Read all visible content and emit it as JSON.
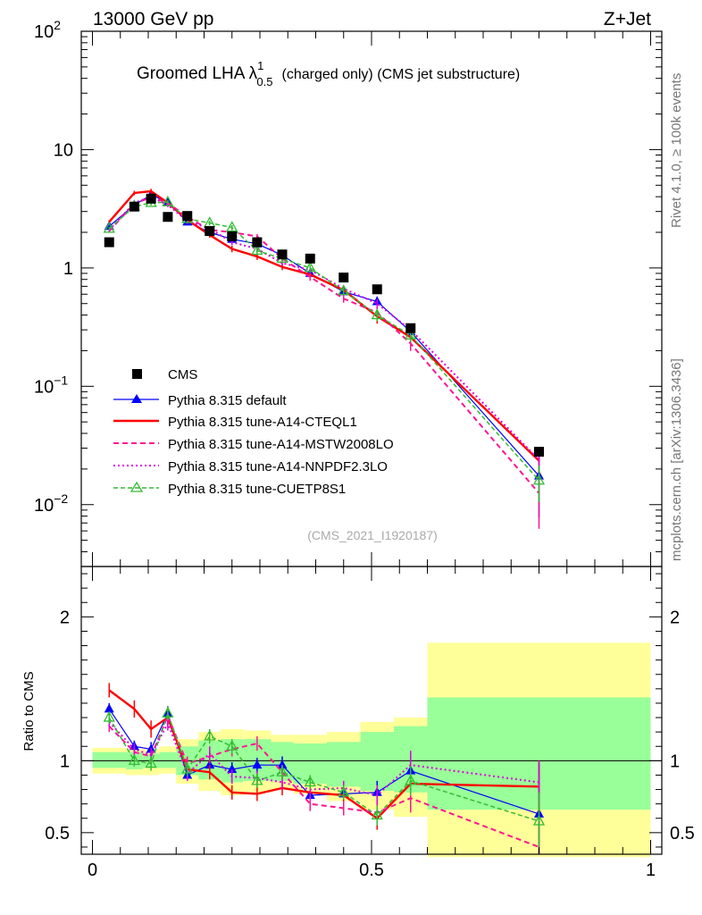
{
  "header": {
    "beam": "13000 GeV pp",
    "process": "Z+Jet"
  },
  "side": {
    "rivet": "Rivet 4.1.0, ≥ 100k events",
    "mcplots": "mcplots.cern.ch [arXiv:1306.3436]"
  },
  "chart_data": {
    "type": "line",
    "title": "Groomed LHA λ^1_0.5 (charged only) (CMS jet substructure)",
    "title_main": "Groomed LHA λ",
    "title_sup": "1",
    "title_sub": "0.5",
    "title_rest": "(charged only) (CMS jet substructure)",
    "analysis_tag": "(CMS_2021_I1920187)",
    "x": [
      0.03,
      0.075,
      0.105,
      0.135,
      0.17,
      0.21,
      0.25,
      0.295,
      0.34,
      0.39,
      0.45,
      0.51,
      0.57,
      0.8
    ],
    "xlim": [
      -0.02,
      1.02
    ],
    "ylim_main": [
      0.003,
      100
    ],
    "yscale_main": "log",
    "main_ticks": [
      {
        "value": 100,
        "base": "10",
        "exp": "2"
      },
      {
        "value": 10,
        "base": "10",
        "exp": ""
      },
      {
        "value": 1,
        "base": "1",
        "exp": ""
      },
      {
        "value": 0.1,
        "base": "10",
        "exp": "−1"
      },
      {
        "value": 0.01,
        "base": "10",
        "exp": "−2"
      }
    ],
    "ratio_ylabel": "Ratio to CMS",
    "ylim_ratio": [
      0.35,
      2.35
    ],
    "ratio_ticks": [
      {
        "value": 2,
        "label": "2"
      },
      {
        "value": 1,
        "label": "1"
      },
      {
        "value": 0.5,
        "label": "0.5"
      }
    ],
    "x_ticks": [
      {
        "value": 0,
        "label": "0"
      },
      {
        "value": 0.5,
        "label": "0.5"
      },
      {
        "value": 1,
        "label": "1"
      }
    ],
    "data": {
      "name": "CMS",
      "values": [
        1.65,
        3.3,
        3.85,
        2.7,
        2.75,
        2.05,
        1.85,
        1.65,
        1.3,
        1.2,
        0.83,
        0.66,
        0.31,
        0.028
      ]
    },
    "bands": {
      "edges": [
        0.0,
        0.06,
        0.09,
        0.12,
        0.15,
        0.19,
        0.23,
        0.27,
        0.32,
        0.36,
        0.42,
        0.48,
        0.54,
        0.6,
        1.0
      ],
      "inner_lo": [
        0.95,
        0.94,
        0.95,
        0.95,
        0.9,
        0.87,
        0.85,
        0.86,
        0.86,
        0.84,
        0.82,
        0.79,
        0.78,
        0.66
      ],
      "inner_hi": [
        1.06,
        1.06,
        1.05,
        1.06,
        1.1,
        1.14,
        1.15,
        1.15,
        1.13,
        1.12,
        1.13,
        1.2,
        1.24,
        1.44
      ],
      "outer_lo": [
        0.91,
        0.9,
        0.9,
        0.91,
        0.84,
        0.79,
        0.76,
        0.78,
        0.8,
        0.77,
        0.72,
        0.66,
        0.61,
        0.33
      ],
      "outer_hi": [
        1.09,
        1.08,
        1.08,
        1.1,
        1.15,
        1.2,
        1.22,
        1.21,
        1.18,
        1.18,
        1.2,
        1.27,
        1.3,
        1.82
      ]
    },
    "series": [
      {
        "name": "Pythia 8.315 default",
        "color": "#0000ff",
        "dash": "",
        "width": 1.2,
        "marker": "triangle-filled",
        "values": [
          2.25,
          3.4,
          4.15,
          3.6,
          2.45,
          2.0,
          1.75,
          1.6,
          1.28,
          0.9,
          0.63,
          0.52,
          0.29,
          0.0175
        ],
        "ratio": [
          1.36,
          1.1,
          1.08,
          1.33,
          0.9,
          0.97,
          0.94,
          0.97,
          0.97,
          0.76,
          0.77,
          0.78,
          0.93,
          0.63
        ],
        "ratio_err": [
          0.04,
          0.04,
          0.05,
          0.05,
          0.04,
          0.05,
          0.05,
          0.05,
          0.06,
          0.05,
          0.05,
          0.08,
          0.12,
          0.35
        ]
      },
      {
        "name": "Pythia 8.315 tune-A14-CTEQL1",
        "color": "#ff0000",
        "dash": "",
        "width": 2.4,
        "marker": "none",
        "values": [
          2.45,
          4.3,
          4.45,
          3.55,
          2.55,
          1.9,
          1.45,
          1.25,
          1.02,
          0.88,
          0.65,
          0.39,
          0.26,
          0.0235
        ],
        "ratio": [
          1.49,
          1.36,
          1.22,
          1.3,
          0.94,
          0.92,
          0.78,
          0.77,
          0.81,
          0.78,
          0.76,
          0.6,
          0.84,
          0.82
        ],
        "ratio_err": [
          0.05,
          0.06,
          0.06,
          0.06,
          0.05,
          0.05,
          0.05,
          0.05,
          0.05,
          0.05,
          0.05,
          0.08,
          0.13,
          0.18
        ]
      },
      {
        "name": "Pythia 8.315 tune-A14-MSTW2008LO",
        "color": "#ff1493",
        "dash": "6,4",
        "width": 2.0,
        "marker": "none",
        "values": [
          2.05,
          3.5,
          3.95,
          3.55,
          2.7,
          2.1,
          2.0,
          1.85,
          1.2,
          0.84,
          0.55,
          0.42,
          0.23,
          0.0125
        ],
        "ratio": [
          1.24,
          1.06,
          1.03,
          1.31,
          0.98,
          1.03,
          1.08,
          1.12,
          0.92,
          0.7,
          0.67,
          0.64,
          0.74,
          0.4
        ],
        "ratio_err": [
          0.04,
          0.04,
          0.05,
          0.05,
          0.05,
          0.05,
          0.05,
          0.05,
          0.05,
          0.05,
          0.05,
          0.07,
          0.1,
          0.2
        ]
      },
      {
        "name": "Pythia 8.315 tune-A14-NNPDF2.3LO",
        "color": "#dd00dd",
        "dash": "2,3",
        "width": 2.0,
        "marker": "none",
        "values": [
          2.1,
          3.55,
          4.0,
          3.4,
          2.5,
          2.15,
          1.65,
          1.45,
          1.1,
          0.96,
          0.67,
          0.5,
          0.3,
          0.024
        ],
        "ratio": [
          1.27,
          1.08,
          1.04,
          1.26,
          0.91,
          1.05,
          0.89,
          0.88,
          0.85,
          0.8,
          0.81,
          0.76,
          0.97,
          0.85
        ],
        "ratio_err": [
          0.04,
          0.04,
          0.05,
          0.05,
          0.05,
          0.05,
          0.05,
          0.05,
          0.05,
          0.05,
          0.05,
          0.07,
          0.1,
          0.15
        ]
      },
      {
        "name": "Pythia 8.315 tune-CUETP8S1",
        "color": "#33bb33",
        "dash": "5,3",
        "width": 1.5,
        "marker": "triangle-open",
        "values": [
          2.15,
          3.3,
          3.55,
          3.6,
          2.6,
          2.4,
          2.2,
          1.4,
          1.2,
          1.0,
          0.64,
          0.4,
          0.27,
          0.016
        ],
        "ratio": [
          1.3,
          1.0,
          0.98,
          1.33,
          0.94,
          1.17,
          1.1,
          0.86,
          0.92,
          0.85,
          0.78,
          0.62,
          0.86,
          0.58
        ],
        "ratio_err": [
          0.04,
          0.04,
          0.05,
          0.05,
          0.05,
          0.05,
          0.05,
          0.05,
          0.05,
          0.05,
          0.05,
          0.07,
          0.1,
          0.2
        ]
      }
    ]
  }
}
